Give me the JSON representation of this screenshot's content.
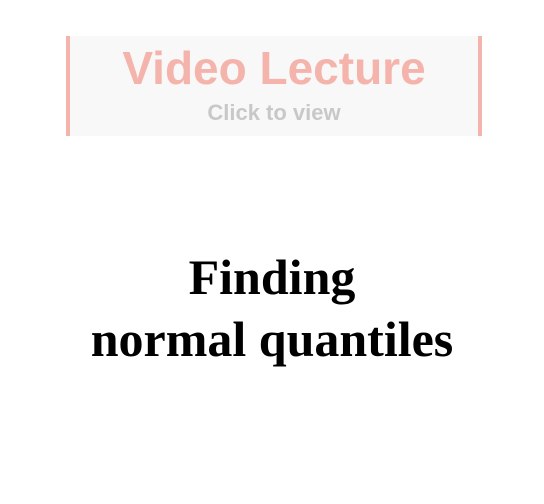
{
  "video_banner": {
    "title": "Video Lecture",
    "subtitle": "Click to view"
  },
  "slide": {
    "title_line1": "Finding",
    "title_line2": "normal quantiles"
  },
  "colors": {
    "banner_accent": "#f4b4ac",
    "banner_subtitle": "#c8c8c8",
    "banner_background": "#f8f8f8",
    "title_text": "#000000"
  }
}
